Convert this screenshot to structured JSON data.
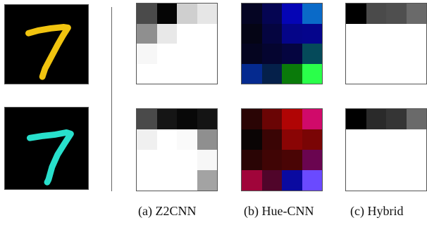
{
  "captions": {
    "a": "(a) Z2CNN",
    "b": "(b) Hue-CNN",
    "c": "(c) Hybrid"
  },
  "digits": [
    {
      "label": "7",
      "color": "#f1c40f",
      "background": "#000000"
    },
    {
      "label": "7",
      "color": "#28e0cc",
      "background": "#000000"
    }
  ],
  "filters": {
    "z2cnn_top": [
      "#4a4a4a",
      "#050505",
      "#cfcfcf",
      "#e6e6e6",
      "#8f8f8f",
      "#e8e8e8",
      "#ffffff",
      "#ffffff",
      "#f7f7f7",
      "#ffffff",
      "#ffffff",
      "#ffffff",
      "#ffffff",
      "#ffffff",
      "#ffffff",
      "#ffffff"
    ],
    "z2cnn_bottom": [
      "#4a4a4a",
      "#151515",
      "#080808",
      "#141414",
      "#f0f0f0",
      "#ffffff",
      "#fafafa",
      "#8f8f8f",
      "#ffffff",
      "#ffffff",
      "#ffffff",
      "#f7f7f7",
      "#ffffff",
      "#ffffff",
      "#ffffff",
      "#a3a3a3"
    ],
    "hue_top": [
      "#050523",
      "#050552",
      "#0505b5",
      "#0a6ac8",
      "#050515",
      "#050540",
      "#050588",
      "#05058c",
      "#050520",
      "#050530",
      "#050540",
      "#054a5a",
      "#052a8f",
      "#05204a",
      "#0a7a0a",
      "#2aff4a"
    ],
    "hue_bottom": [
      "#2a0505",
      "#6a0505",
      "#b00505",
      "#d00a6a",
      "#0a0505",
      "#3a0505",
      "#8a0505",
      "#7a0505",
      "#2a0505",
      "#400505",
      "#4a0505",
      "#6a0550",
      "#a0053a",
      "#50052a",
      "#0a0aa0",
      "#6a4aff"
    ],
    "hybrid_top": [
      "#000000",
      "#4a4a4a",
      "#4f4f4f",
      "#6a6a6a",
      "#ffffff",
      "#ffffff",
      "#ffffff",
      "#ffffff",
      "#ffffff",
      "#ffffff",
      "#ffffff",
      "#ffffff",
      "#ffffff",
      "#ffffff",
      "#ffffff",
      "#ffffff"
    ],
    "hybrid_bottom": [
      "#000000",
      "#2a2a2a",
      "#353535",
      "#6a6a6a",
      "#ffffff",
      "#ffffff",
      "#ffffff",
      "#ffffff",
      "#ffffff",
      "#ffffff",
      "#ffffff",
      "#ffffff",
      "#ffffff",
      "#ffffff",
      "#ffffff",
      "#ffffff"
    ]
  }
}
